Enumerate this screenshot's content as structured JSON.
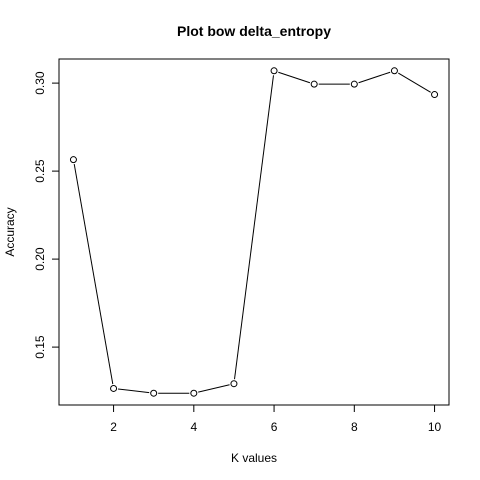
{
  "chart_data": {
    "type": "line",
    "title": "Plot bow delta_entropy",
    "xlabel": "K values",
    "ylabel": "Accuracy",
    "x": [
      1,
      2,
      3,
      4,
      5,
      6,
      7,
      8,
      9,
      10
    ],
    "y": [
      0.2565,
      0.1265,
      0.1238,
      0.1238,
      0.1292,
      0.307,
      0.2994,
      0.2994,
      0.307,
      0.2935
    ],
    "xlim": [
      0.64,
      10.36
    ],
    "ylim": [
      0.1171,
      0.3137
    ],
    "x_ticks": [
      2,
      4,
      6,
      8,
      10
    ],
    "y_ticks": [
      0.15,
      0.2,
      0.25,
      0.3
    ],
    "x_tick_labels": [
      "2",
      "4",
      "6",
      "8",
      "10"
    ],
    "y_tick_labels": [
      "0.15",
      "0.20",
      "0.25",
      "0.30"
    ],
    "grid": false,
    "legend": "none",
    "markers": "open circles",
    "line_color": "#000000"
  }
}
